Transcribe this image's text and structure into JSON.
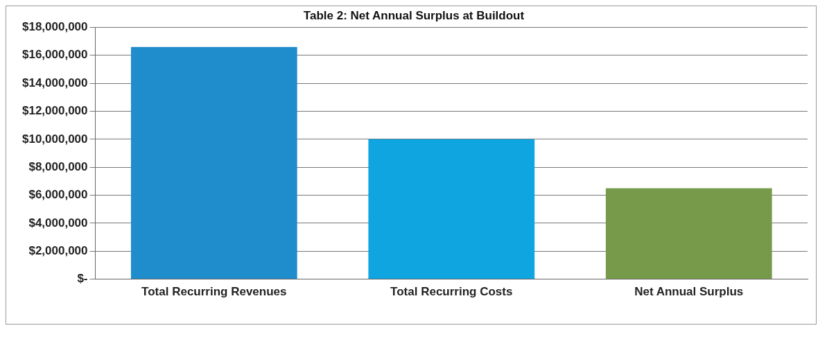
{
  "chart_data": {
    "type": "bar",
    "title": "Table 2: Net Annual Surplus at Buildout",
    "categories": [
      "Total Recurring Revenues",
      "Total Recurring Costs",
      "Net Annual Surplus"
    ],
    "values": [
      16600000,
      10000000,
      6500000
    ],
    "colors": [
      "#1f8ccc",
      "#0ea5e0",
      "#77994a"
    ],
    "ylim": [
      0,
      18000000
    ],
    "yticks": [
      {
        "value": 0,
        "label": "$-"
      },
      {
        "value": 2000000,
        "label": "$2,000,000"
      },
      {
        "value": 4000000,
        "label": "$4,000,000"
      },
      {
        "value": 6000000,
        "label": "$6,000,000"
      },
      {
        "value": 8000000,
        "label": "$8,000,000"
      },
      {
        "value": 10000000,
        "label": "$10,000,000"
      },
      {
        "value": 12000000,
        "label": "$12,000,000"
      },
      {
        "value": 14000000,
        "label": "$14,000,000"
      },
      {
        "value": 16000000,
        "label": "$16,000,000"
      },
      {
        "value": 18000000,
        "label": "$18,000,000"
      }
    ],
    "grid": "y",
    "legend": false
  }
}
